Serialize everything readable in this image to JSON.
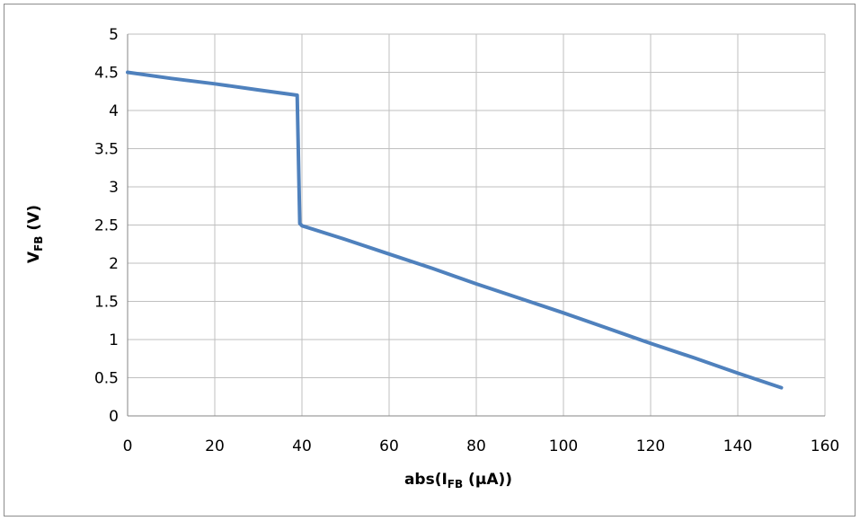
{
  "chart_data": {
    "type": "line",
    "title": "",
    "xlabel": {
      "prefix": "abs(I",
      "subscript": "FB",
      "suffix": " (µA))"
    },
    "ylabel": {
      "prefix": "V",
      "subscript": "FB",
      "suffix": " (V)"
    },
    "xlim": [
      0,
      160
    ],
    "ylim": [
      0,
      5
    ],
    "x_ticks": [
      "0",
      "20",
      "40",
      "60",
      "80",
      "100",
      "120",
      "140",
      "160"
    ],
    "y_ticks": [
      "0",
      "0.5",
      "1",
      "1.5",
      "2",
      "2.5",
      "3",
      "3.5",
      "4",
      "4.5",
      "5"
    ],
    "x_tick_values": [
      0,
      20,
      40,
      60,
      80,
      100,
      120,
      140,
      160
    ],
    "y_tick_values": [
      0,
      0.5,
      1,
      1.5,
      2,
      2.5,
      3,
      3.5,
      4,
      4.5,
      5
    ],
    "grid": true,
    "legend": "none",
    "series": [
      {
        "color": "#4f81bd",
        "x": [
          0,
          10,
          20,
          30,
          38.9,
          39.5,
          40,
          50,
          60,
          70,
          80,
          90,
          100,
          110,
          120,
          130,
          140,
          150
        ],
        "y": [
          4.5,
          4.42,
          4.35,
          4.27,
          4.2,
          2.52,
          2.49,
          2.31,
          2.12,
          1.93,
          1.73,
          1.54,
          1.35,
          1.15,
          0.95,
          0.76,
          0.56,
          0.37
        ]
      }
    ]
  }
}
